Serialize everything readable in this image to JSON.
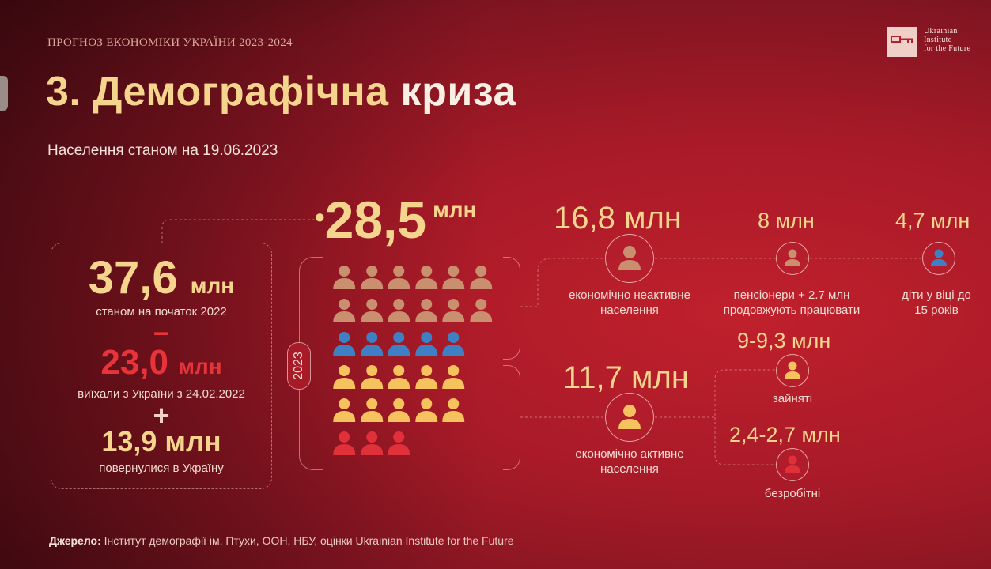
{
  "header": {
    "top_label": "ПРОГНОЗ ЕКОНОМІКИ УКРАЇНИ 2023-2024",
    "title_main": "3. Демографічна",
    "title_highlight": "криза",
    "subtitle": "Населення станом на 19.06.2023"
  },
  "logo": {
    "line1": "Ukrainian",
    "line2": "Institute",
    "line3": "for the Future"
  },
  "left_panel": {
    "start_value": "37,6",
    "start_unit": "млн",
    "start_caption": "станом на початок 2022",
    "minus_sign": "–",
    "left_value": "23,0",
    "left_unit": "млн",
    "left_caption": "виїхали з України з 24.02.2022",
    "plus_sign": "+",
    "returned_value": "13,9 млн",
    "returned_caption": "повернулися в Україну"
  },
  "center": {
    "total_dot": "•",
    "total_value": "28,5",
    "total_unit": "млн",
    "year": "2023"
  },
  "people_rows": [
    [
      "tan",
      "tan",
      "tan",
      "tan",
      "tan",
      "tan"
    ],
    [
      "tan",
      "tan",
      "tan",
      "tan",
      "tan",
      "tan"
    ],
    [
      "blue",
      "blue",
      "blue",
      "blue",
      "blue"
    ],
    [
      "yellow",
      "yellow",
      "yellow",
      "yellow",
      "yellow"
    ],
    [
      "yellow",
      "yellow",
      "yellow",
      "yellow",
      "yellow"
    ],
    [
      "red",
      "red",
      "red"
    ]
  ],
  "colors": {
    "tan": "#c98f6e",
    "blue": "#3f7fc4",
    "yellow": "#f5c25e",
    "red": "#e0303a",
    "accent": "#f5d48e"
  },
  "right": {
    "inactive_value": "16,8 млн",
    "inactive_caption_1": "економічно неактивне",
    "inactive_caption_2": "населення",
    "pensioners_value": "8 млн",
    "pensioners_caption_1": "пенсіонери + 2.7 млн",
    "pensioners_caption_2": "продовжують працювати",
    "children_value": "4,7 млн",
    "children_caption_1": "діти у віці до",
    "children_caption_2": "15 років",
    "active_value": "11,7 млн",
    "active_caption_1": "економічно активне",
    "active_caption_2": "населення",
    "employed_value": "9-9,3 млн",
    "employed_caption": "зайняті",
    "unemployed_value": "2,4-2,7 млн",
    "unemployed_caption": "безробітні"
  },
  "icons": {
    "inactive": "person-icon-tan",
    "pensioners": "person-icon-tan",
    "children": "person-icon-blue",
    "active": "person-icon-yellow",
    "employed": "person-icon-yellow",
    "unemployed": "person-icon-red"
  },
  "source": {
    "label": "Джерело:",
    "text": " Інститут демографії ім. Птухи, ООН, НБУ, оцінки Ukrainian Institute for the Future"
  }
}
